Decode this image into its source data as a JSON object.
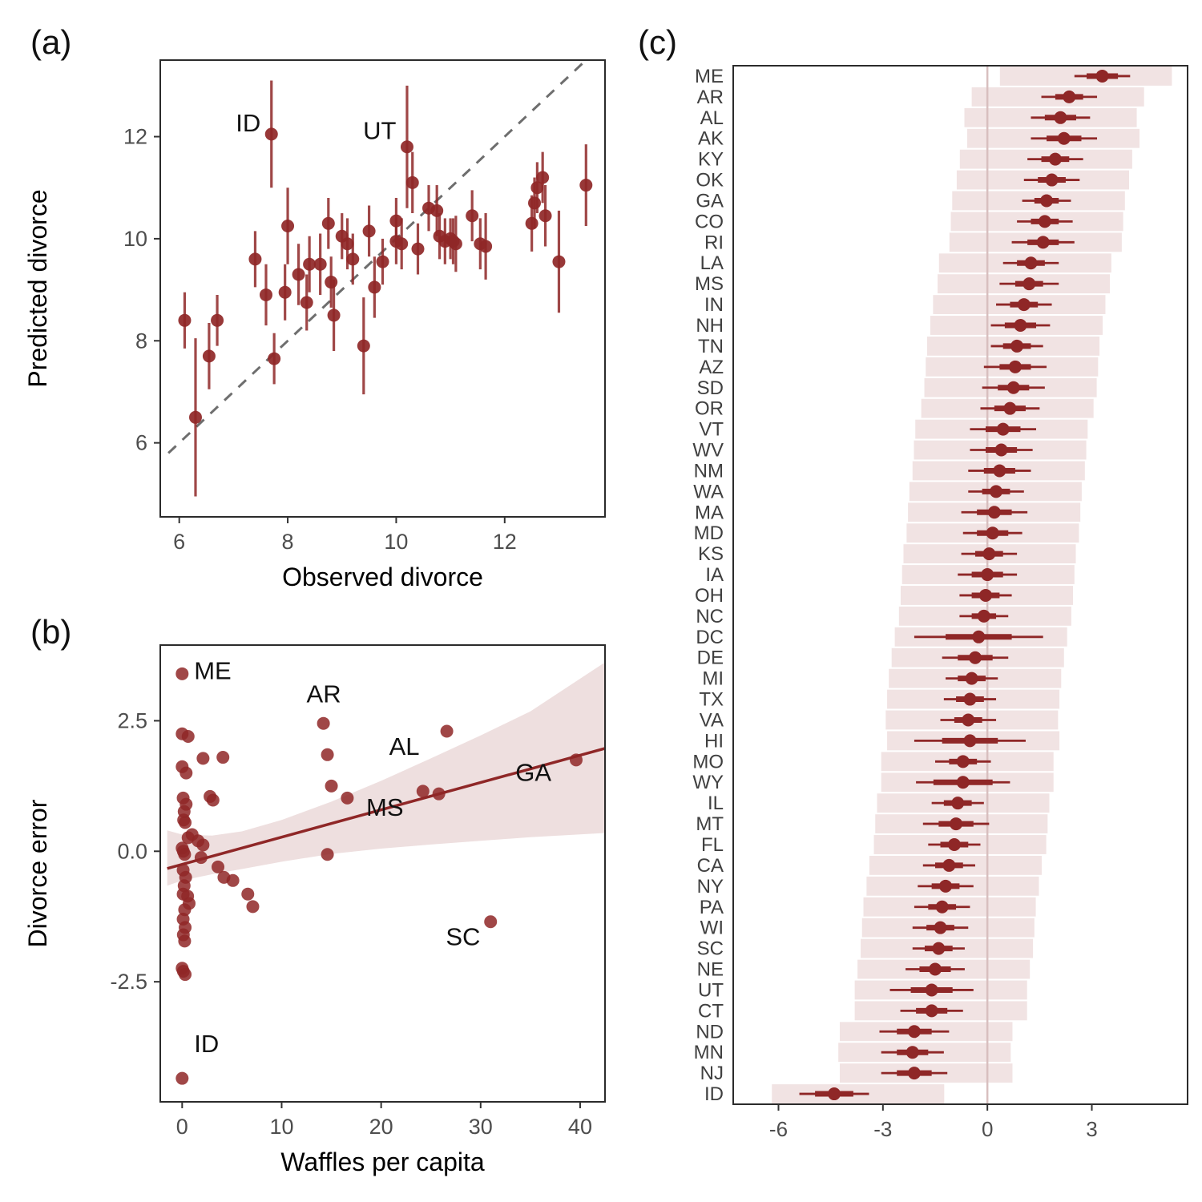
{
  "figure": {
    "background": "#ffffff",
    "accent_color": "#8f2727",
    "ribbon_color_rgba": "rgba(143,39,39,0.15)",
    "bar_color_rgba": "rgba(143,39,39,0.13)",
    "dashed_line_color": "#6e6e6e",
    "zero_line_color": "#d8bfbf"
  },
  "chart_data": [
    {
      "type": "scatter",
      "tag": "(a)",
      "xlabel": "Observed divorce",
      "ylabel": "Predicted divorce",
      "xlim": [
        5.65,
        13.85
      ],
      "ylim": [
        4.55,
        13.5
      ],
      "x_ticks": [
        [
          6,
          "6"
        ],
        [
          8,
          "8"
        ],
        [
          10,
          "10"
        ],
        [
          12,
          "12"
        ]
      ],
      "y_ticks": [
        [
          6,
          "6"
        ],
        [
          8,
          "8"
        ],
        [
          10,
          "10"
        ],
        [
          12,
          "12"
        ]
      ],
      "diagonal": [
        [
          5.8,
          5.8
        ],
        [
          13.45,
          13.45
        ]
      ],
      "color": "#8f2727",
      "points": [
        [
          6.1,
          8.4,
          0.55
        ],
        [
          6.3,
          6.5,
          1.55
        ],
        [
          6.55,
          7.7,
          0.65
        ],
        [
          6.7,
          8.4,
          0.5
        ],
        [
          7.4,
          9.6,
          0.55
        ],
        [
          7.6,
          8.9,
          0.6
        ],
        [
          7.7,
          12.05,
          1.05
        ],
        [
          7.75,
          7.65,
          0.5
        ],
        [
          7.95,
          8.95,
          0.55
        ],
        [
          8.0,
          10.25,
          0.75
        ],
        [
          8.2,
          9.3,
          0.6
        ],
        [
          8.35,
          8.75,
          0.55
        ],
        [
          8.4,
          9.5,
          0.55
        ],
        [
          8.6,
          9.5,
          0.6
        ],
        [
          8.75,
          10.3,
          0.5
        ],
        [
          8.8,
          9.15,
          0.5
        ],
        [
          8.85,
          8.5,
          0.7
        ],
        [
          9.0,
          10.05,
          0.45
        ],
        [
          9.1,
          9.9,
          0.5
        ],
        [
          9.2,
          9.6,
          0.5
        ],
        [
          9.4,
          7.9,
          0.95
        ],
        [
          9.5,
          10.15,
          0.5
        ],
        [
          9.6,
          9.05,
          0.6
        ],
        [
          9.75,
          9.55,
          0.45
        ],
        [
          10.0,
          10.35,
          0.45
        ],
        [
          10.0,
          9.95,
          0.45
        ],
        [
          10.1,
          9.9,
          0.5
        ],
        [
          10.2,
          11.8,
          1.2
        ],
        [
          10.3,
          11.1,
          0.6
        ],
        [
          10.4,
          9.8,
          0.5
        ],
        [
          10.6,
          10.6,
          0.45
        ],
        [
          10.75,
          10.55,
          0.5
        ],
        [
          10.8,
          10.05,
          0.45
        ],
        [
          10.9,
          9.95,
          0.45
        ],
        [
          11.0,
          10.0,
          0.4
        ],
        [
          11.05,
          9.95,
          0.45
        ],
        [
          11.1,
          9.9,
          0.55
        ],
        [
          11.4,
          10.45,
          0.5
        ],
        [
          11.55,
          9.9,
          0.5
        ],
        [
          11.65,
          9.85,
          0.65
        ],
        [
          12.5,
          10.3,
          0.55
        ],
        [
          12.55,
          10.7,
          0.5
        ],
        [
          12.6,
          11.0,
          0.5
        ],
        [
          12.7,
          11.2,
          0.5
        ],
        [
          12.75,
          10.45,
          0.6
        ],
        [
          13.0,
          9.55,
          1.0
        ],
        [
          13.5,
          11.05,
          0.8
        ]
      ],
      "labels": [
        {
          "text": "ID",
          "x": 7.5,
          "y": 12.1,
          "anchor": "end"
        },
        {
          "text": "UT",
          "y": 11.95,
          "x": 10.0,
          "anchor": "end"
        }
      ]
    },
    {
      "type": "scatter",
      "tag": "(b)",
      "xlabel": "Waffles per capita",
      "ylabel": "Divorce error",
      "xlim": [
        -2.2,
        42.5
      ],
      "ylim": [
        -4.8,
        3.95
      ],
      "x_ticks": [
        [
          0,
          "0"
        ],
        [
          10,
          "10"
        ],
        [
          20,
          "20"
        ],
        [
          30,
          "30"
        ],
        [
          40,
          "40"
        ]
      ],
      "y_ticks": [
        [
          2.5,
          "2.5"
        ],
        [
          0,
          "0.0"
        ],
        [
          -2.5,
          "-2.5"
        ]
      ],
      "color": "#8f2727",
      "line": [
        [
          -1.5,
          -0.33
        ],
        [
          42.5,
          1.97
        ]
      ],
      "ribbon": {
        "x": [
          -1.5,
          0,
          3,
          6,
          10,
          15,
          20,
          25,
          30,
          35,
          42.5
        ],
        "lo": [
          -0.66,
          -0.56,
          -0.44,
          -0.34,
          -0.2,
          -0.05,
          0.05,
          0.13,
          0.2,
          0.27,
          0.35
        ],
        "hi": [
          0.4,
          0.32,
          0.3,
          0.38,
          0.6,
          0.95,
          1.35,
          1.78,
          2.22,
          2.68,
          3.62
        ]
      },
      "points": [
        [
          0,
          3.4
        ],
        [
          0,
          2.25
        ],
        [
          0.6,
          2.2
        ],
        [
          0,
          1.62
        ],
        [
          0.4,
          1.5
        ],
        [
          2.1,
          1.78
        ],
        [
          4.1,
          1.8
        ],
        [
          0.1,
          1.02
        ],
        [
          0.4,
          0.9
        ],
        [
          0.2,
          0.76
        ],
        [
          0.15,
          0.6
        ],
        [
          0.3,
          0.55
        ],
        [
          2.8,
          1.05
        ],
        [
          3.1,
          0.98
        ],
        [
          1.0,
          0.32
        ],
        [
          0.6,
          0.26
        ],
        [
          1.6,
          0.2
        ],
        [
          2.1,
          0.12
        ],
        [
          0,
          0.06
        ],
        [
          0.12,
          0
        ],
        [
          0.25,
          -0.06
        ],
        [
          1.9,
          -0.12
        ],
        [
          3.6,
          -0.3
        ],
        [
          0.1,
          -0.36
        ],
        [
          0.35,
          -0.5
        ],
        [
          4.2,
          -0.5
        ],
        [
          5.1,
          -0.56
        ],
        [
          0.2,
          -0.66
        ],
        [
          0.1,
          -0.82
        ],
        [
          0.55,
          -0.86
        ],
        [
          0.7,
          -1.0
        ],
        [
          0.25,
          -1.12
        ],
        [
          6.6,
          -0.82
        ],
        [
          7.1,
          -1.06
        ],
        [
          0.1,
          -1.3
        ],
        [
          0.3,
          -1.46
        ],
        [
          0.12,
          -1.6
        ],
        [
          0.25,
          -1.72
        ],
        [
          0,
          -2.24
        ],
        [
          0.12,
          -2.3
        ],
        [
          0.3,
          -2.36
        ],
        [
          14.2,
          2.45
        ],
        [
          14.6,
          1.85
        ],
        [
          15.0,
          1.25
        ],
        [
          16.6,
          1.02
        ],
        [
          14.6,
          -0.06
        ],
        [
          24.2,
          1.15
        ],
        [
          26.6,
          2.3
        ],
        [
          25.8,
          1.1
        ],
        [
          31,
          -1.35
        ],
        [
          39.6,
          1.75
        ],
        [
          0,
          -4.35
        ]
      ],
      "labels": [
        {
          "text": "ME",
          "x": 1.2,
          "y": 3.3,
          "anchor": "start"
        },
        {
          "text": "AR",
          "x": 12.5,
          "y": 2.85,
          "anchor": "start"
        },
        {
          "text": "AL",
          "x": 20.8,
          "y": 1.85,
          "anchor": "start"
        },
        {
          "text": "GA",
          "x": 33.5,
          "y": 1.35,
          "anchor": "start"
        },
        {
          "text": "MS",
          "x": 18.5,
          "y": 0.68,
          "anchor": "start"
        },
        {
          "text": "SC",
          "x": 26.5,
          "y": -1.8,
          "anchor": "start"
        },
        {
          "text": "ID",
          "x": 1.2,
          "y": -3.85,
          "anchor": "start"
        }
      ]
    },
    {
      "type": "forest",
      "tag": "(c)",
      "xlabel": "",
      "xlim": [
        -7.3,
        5.75
      ],
      "x_ticks": [
        [
          -6,
          "-6"
        ],
        [
          -3,
          "-3"
        ],
        [
          0,
          "0"
        ],
        [
          3,
          "3"
        ]
      ],
      "color": "#8f2727",
      "states": [
        {
          "s": "ME",
          "m": 3.3,
          "t": 0.45,
          "w": 0.8,
          "b": [
            0.36,
            5.3
          ]
        },
        {
          "s": "AR",
          "m": 2.35,
          "t": 0.4,
          "w": 0.8,
          "b": [
            -0.45,
            4.5
          ]
        },
        {
          "s": "AL",
          "m": 2.1,
          "t": 0.45,
          "w": 0.85,
          "b": [
            -0.66,
            4.29
          ]
        },
        {
          "s": "AK",
          "m": 2.2,
          "t": 0.5,
          "w": 0.95,
          "b": [
            -0.58,
            4.37
          ]
        },
        {
          "s": "KY",
          "m": 1.95,
          "t": 0.4,
          "w": 0.8,
          "b": [
            -0.79,
            4.16
          ]
        },
        {
          "s": "OK",
          "m": 1.85,
          "t": 0.4,
          "w": 0.8,
          "b": [
            -0.88,
            4.07
          ]
        },
        {
          "s": "GA",
          "m": 1.7,
          "t": 0.35,
          "w": 0.7,
          "b": [
            -1.01,
            3.95
          ]
        },
        {
          "s": "CO",
          "m": 1.65,
          "t": 0.4,
          "w": 0.8,
          "b": [
            -1.05,
            3.9
          ]
        },
        {
          "s": "RI",
          "m": 1.6,
          "t": 0.45,
          "w": 0.9,
          "b": [
            -1.09,
            3.86
          ]
        },
        {
          "s": "LA",
          "m": 1.25,
          "t": 0.4,
          "w": 0.8,
          "b": [
            -1.39,
            3.56
          ]
        },
        {
          "s": "MS",
          "m": 1.2,
          "t": 0.4,
          "w": 0.85,
          "b": [
            -1.43,
            3.52
          ]
        },
        {
          "s": "IN",
          "m": 1.05,
          "t": 0.4,
          "w": 0.8,
          "b": [
            -1.56,
            3.39
          ]
        },
        {
          "s": "NH",
          "m": 0.95,
          "t": 0.45,
          "w": 0.85,
          "b": [
            -1.64,
            3.31
          ]
        },
        {
          "s": "TN",
          "m": 0.85,
          "t": 0.4,
          "w": 0.75,
          "b": [
            -1.73,
            3.22
          ]
        },
        {
          "s": "AZ",
          "m": 0.8,
          "t": 0.45,
          "w": 0.9,
          "b": [
            -1.77,
            3.18
          ]
        },
        {
          "s": "SD",
          "m": 0.75,
          "t": 0.45,
          "w": 0.9,
          "b": [
            -1.81,
            3.14
          ]
        },
        {
          "s": "OR",
          "m": 0.65,
          "t": 0.45,
          "w": 0.85,
          "b": [
            -1.9,
            3.05
          ]
        },
        {
          "s": "VT",
          "m": 0.45,
          "t": 0.5,
          "w": 0.95,
          "b": [
            -2.07,
            2.88
          ]
        },
        {
          "s": "WV",
          "m": 0.4,
          "t": 0.45,
          "w": 0.9,
          "b": [
            -2.11,
            2.84
          ]
        },
        {
          "s": "NM",
          "m": 0.35,
          "t": 0.45,
          "w": 0.9,
          "b": [
            -2.15,
            2.8
          ]
        },
        {
          "s": "WA",
          "m": 0.25,
          "t": 0.4,
          "w": 0.8,
          "b": [
            -2.24,
            2.71
          ]
        },
        {
          "s": "MA",
          "m": 0.2,
          "t": 0.5,
          "w": 0.95,
          "b": [
            -2.28,
            2.67
          ]
        },
        {
          "s": "MD",
          "m": 0.15,
          "t": 0.45,
          "w": 0.85,
          "b": [
            -2.32,
            2.63
          ]
        },
        {
          "s": "KS",
          "m": 0.05,
          "t": 0.4,
          "w": 0.8,
          "b": [
            -2.41,
            2.54
          ]
        },
        {
          "s": "IA",
          "m": 0.0,
          "t": 0.45,
          "w": 0.85,
          "b": [
            -2.45,
            2.5
          ]
        },
        {
          "s": "OH",
          "m": -0.05,
          "t": 0.4,
          "w": 0.75,
          "b": [
            -2.49,
            2.46
          ]
        },
        {
          "s": "NC",
          "m": -0.1,
          "t": 0.35,
          "w": 0.7,
          "b": [
            -2.54,
            2.41
          ]
        },
        {
          "s": "DC",
          "m": -0.25,
          "t": 0.95,
          "w": 1.85,
          "b": [
            -2.66,
            2.29
          ]
        },
        {
          "s": "DE",
          "m": -0.35,
          "t": 0.5,
          "w": 0.95,
          "b": [
            -2.75,
            2.2
          ]
        },
        {
          "s": "MI",
          "m": -0.45,
          "t": 0.4,
          "w": 0.75,
          "b": [
            -2.83,
            2.12
          ]
        },
        {
          "s": "TX",
          "m": -0.5,
          "t": 0.4,
          "w": 0.75,
          "b": [
            -2.88,
            2.07
          ]
        },
        {
          "s": "VA",
          "m": -0.55,
          "t": 0.4,
          "w": 0.8,
          "b": [
            -2.92,
            2.03
          ]
        },
        {
          "s": "HI",
          "m": -0.5,
          "t": 0.8,
          "w": 1.6,
          "b": [
            -2.88,
            2.07
          ]
        },
        {
          "s": "MO",
          "m": -0.7,
          "t": 0.4,
          "w": 0.8,
          "b": [
            -3.05,
            1.9
          ]
        },
        {
          "s": "WY",
          "m": -0.7,
          "t": 0.85,
          "w": 1.35,
          "b": [
            -3.05,
            1.9
          ]
        },
        {
          "s": "IL",
          "m": -0.85,
          "t": 0.4,
          "w": 0.75,
          "b": [
            -3.17,
            1.78
          ]
        },
        {
          "s": "MT",
          "m": -0.9,
          "t": 0.5,
          "w": 0.95,
          "b": [
            -3.22,
            1.73
          ]
        },
        {
          "s": "FL",
          "m": -0.95,
          "t": 0.4,
          "w": 0.75,
          "b": [
            -3.26,
            1.69
          ]
        },
        {
          "s": "CA",
          "m": -1.1,
          "t": 0.4,
          "w": 0.75,
          "b": [
            -3.39,
            1.56
          ]
        },
        {
          "s": "NY",
          "m": -1.2,
          "t": 0.4,
          "w": 0.8,
          "b": [
            -3.47,
            1.48
          ]
        },
        {
          "s": "PA",
          "m": -1.3,
          "t": 0.4,
          "w": 0.8,
          "b": [
            -3.56,
            1.39
          ]
        },
        {
          "s": "WI",
          "m": -1.35,
          "t": 0.4,
          "w": 0.8,
          "b": [
            -3.6,
            1.35
          ]
        },
        {
          "s": "SC",
          "m": -1.4,
          "t": 0.4,
          "w": 0.75,
          "b": [
            -3.64,
            1.31
          ]
        },
        {
          "s": "NE",
          "m": -1.5,
          "t": 0.45,
          "w": 0.85,
          "b": [
            -3.73,
            1.22
          ]
        },
        {
          "s": "UT",
          "m": -1.6,
          "t": 0.6,
          "w": 1.2,
          "b": [
            -3.81,
            1.14
          ]
        },
        {
          "s": "CT",
          "m": -1.6,
          "t": 0.45,
          "w": 0.9,
          "b": [
            -3.81,
            1.14
          ]
        },
        {
          "s": "ND",
          "m": -2.1,
          "t": 0.5,
          "w": 1.0,
          "b": [
            -4.24,
            0.72
          ]
        },
        {
          "s": "MN",
          "m": -2.15,
          "t": 0.45,
          "w": 0.9,
          "b": [
            -4.28,
            0.67
          ]
        },
        {
          "s": "NJ",
          "m": -2.1,
          "t": 0.5,
          "w": 0.95,
          "b": [
            -4.24,
            0.72
          ]
        },
        {
          "s": "ID",
          "m": -4.4,
          "t": 0.55,
          "w": 1.0,
          "b": [
            -6.19,
            -1.24
          ]
        }
      ]
    }
  ]
}
